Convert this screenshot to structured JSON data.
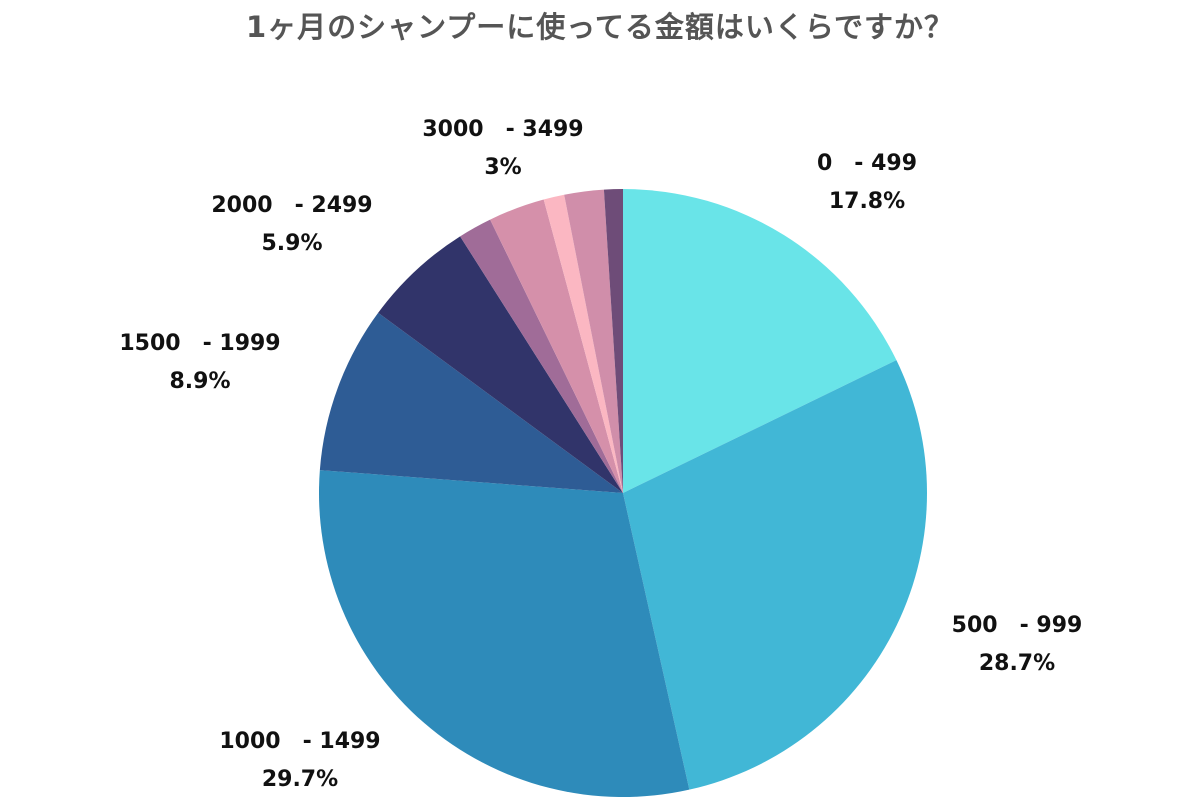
{
  "chart_data": {
    "type": "pie",
    "title": "1ヶ月のシャンプーに使ってる金額はいくらですか？",
    "slices": [
      {
        "label": "0　- 499",
        "value": 17.8,
        "pct_label": "17.8%",
        "color": "#69E4E8"
      },
      {
        "label": "500　- 999",
        "value": 28.7,
        "pct_label": "28.7%",
        "color": "#41B7D6"
      },
      {
        "label": "1000　- 1499",
        "value": 29.7,
        "pct_label": "29.7%",
        "color": "#2E8BBA"
      },
      {
        "label": "1500　- 1999",
        "value": 8.9,
        "pct_label": "8.9%",
        "color": "#2E5C95"
      },
      {
        "label": "2000　- 2499",
        "value": 5.9,
        "pct_label": "5.9%",
        "color": "#31346A"
      },
      {
        "label": "",
        "value": 1.8,
        "pct_label": "",
        "color": "#A06C98"
      },
      {
        "label": "3000　- 3499",
        "value": 3.0,
        "pct_label": "3%",
        "color": "#D590AA"
      },
      {
        "label": "",
        "value": 1.1,
        "pct_label": "",
        "color": "#FBB7C2"
      },
      {
        "label": "",
        "value": 2.1,
        "pct_label": "",
        "color": "#D08EAA"
      },
      {
        "label": "",
        "value": 1.0,
        "pct_label": "",
        "color": "#6E4C78"
      }
    ],
    "start": "12 o'clock",
    "direction": "clockwise",
    "legend": "none"
  }
}
